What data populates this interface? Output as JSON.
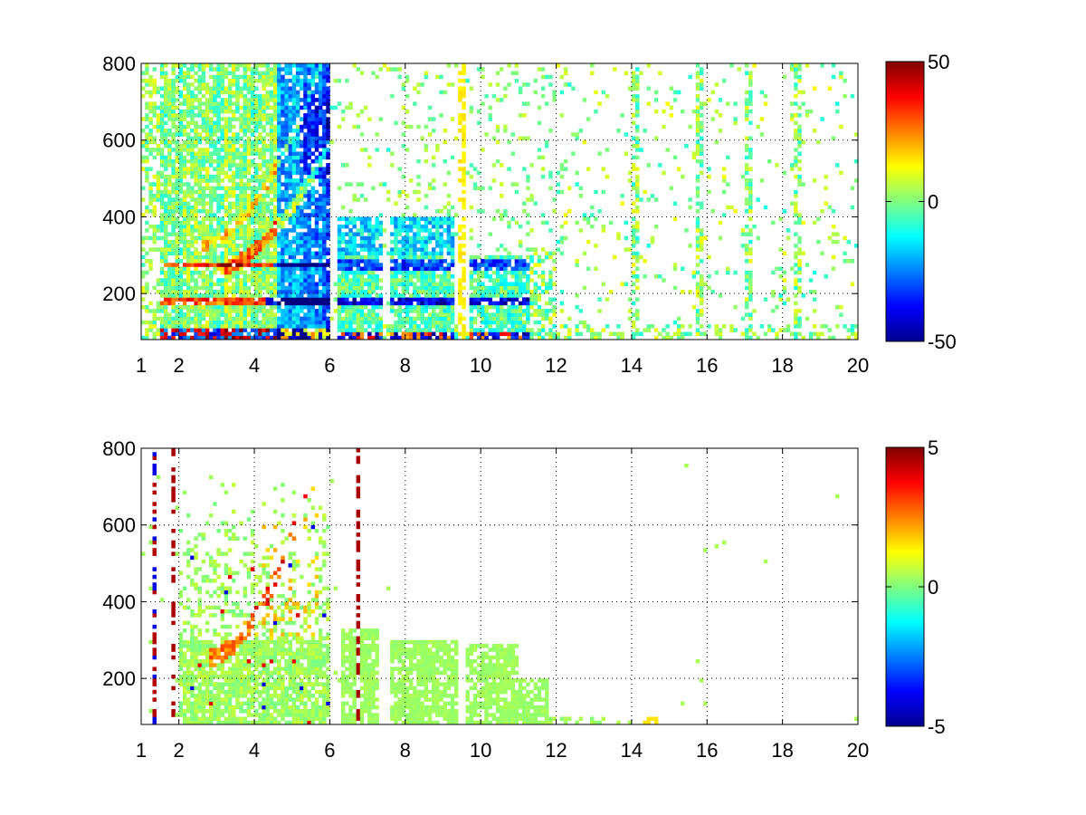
{
  "chart_data": [
    {
      "type": "heatmap",
      "title": "",
      "xlabel": "",
      "ylabel": "",
      "xlim": [
        1,
        20
      ],
      "ylim": [
        80,
        800
      ],
      "grid": true,
      "grid_style": "dotted",
      "colormap": "jet",
      "x_ticks": [
        1,
        2,
        4,
        6,
        8,
        10,
        12,
        14,
        16,
        18,
        20
      ],
      "y_ticks": [
        200,
        400,
        600,
        800
      ],
      "colorbar": {
        "min": -50,
        "max": 50,
        "ticks": [
          -50,
          0,
          50
        ]
      },
      "x_bins": 190,
      "y_bins": 72,
      "features": {
        "strong_region_x": [
          1.5,
          6.0
        ],
        "curved_band_y": [
          250,
          700
        ],
        "negative_bands_y": [
          180,
          275,
          380,
          500
        ],
        "positive_bands_y": [
          110,
          180,
          270
        ],
        "dense_blocks_x": [
          [
            6.2,
            7.4
          ],
          [
            7.6,
            9.3
          ],
          [
            9.7,
            11.3
          ]
        ],
        "sparse_region_x": [
          11.5,
          20
        ],
        "persistent_columns_x": [
          2.5,
          9.5,
          14.1,
          15.8,
          17.1,
          18.4
        ]
      }
    },
    {
      "type": "heatmap",
      "title": "",
      "xlabel": "",
      "ylabel": "",
      "xlim": [
        1,
        20
      ],
      "ylim": [
        80,
        800
      ],
      "grid": true,
      "grid_style": "dotted",
      "colormap": "jet",
      "x_ticks": [
        1,
        2,
        4,
        6,
        8,
        10,
        12,
        14,
        16,
        18,
        20
      ],
      "y_ticks": [
        200,
        400,
        600,
        800
      ],
      "colorbar": {
        "min": -5,
        "max": 5,
        "ticks": [
          -5,
          0,
          5
        ]
      },
      "x_bins": 190,
      "y_bins": 72,
      "features": {
        "strong_region_x": [
          2.8,
          5.7
        ],
        "curved_band_y": [
          250,
          700
        ],
        "flat_region_value": 0.3,
        "dense_blocks_x": [
          [
            6.3,
            7.3
          ],
          [
            7.6,
            9.4
          ],
          [
            9.5,
            11.8
          ]
        ],
        "sparse_region_x": [
          12,
          20
        ],
        "isolated_columns_x": [
          1.4,
          1.9,
          6.8
        ]
      }
    }
  ]
}
